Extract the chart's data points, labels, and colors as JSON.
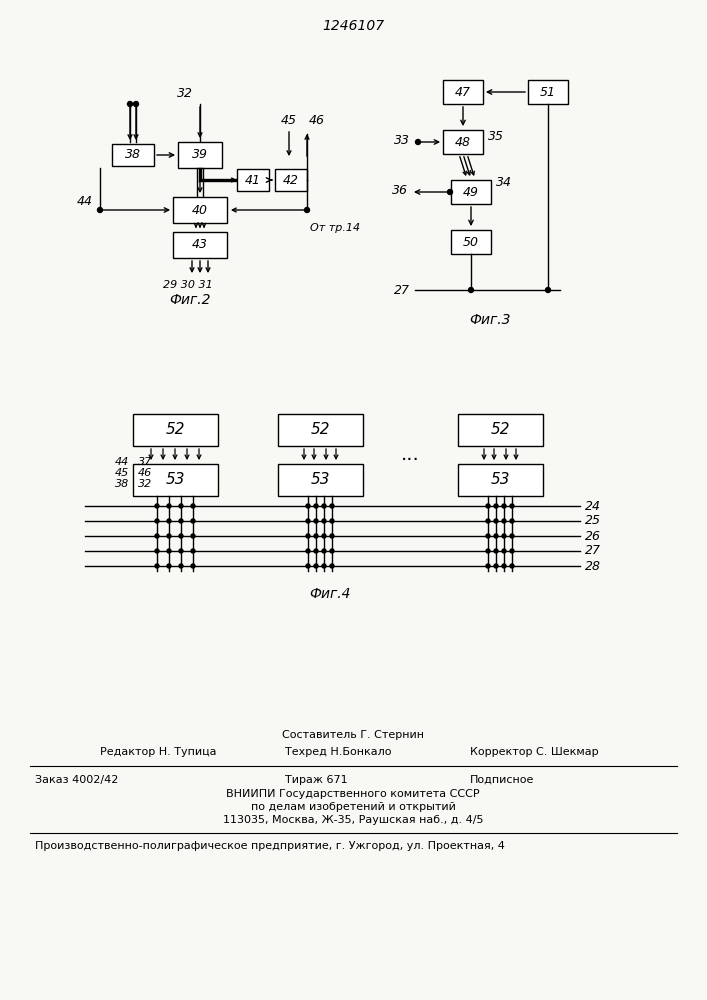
{
  "title": "1246107",
  "bg_color": "#f8f8f5",
  "fig2_caption": "Фиг.2",
  "fig3_caption": "Фиг.3",
  "fig4_caption": "Фиг.4",
  "footer_line1": "Составитель Г. Стернин",
  "footer_line2_left": "Редактор Н. Тупица",
  "footer_line2_mid": "Техред Н.Бонкало",
  "footer_line2_right": "Корректор С. Шекмар",
  "footer_line3_left": "Заказ 4002/42",
  "footer_line3_mid": "Тираж 671",
  "footer_line3_right": "Подписное",
  "footer_line4": "ВНИИПИ Государственного комитета СССР",
  "footer_line5": "по делам изобретений и открытий",
  "footer_line6": "113035, Москва, Ж-35, Раушская наб., д. 4/5",
  "footer_line7": "Производственно-полиграфическое предприятие, г. Ужгород, ул. Проектная, 4"
}
